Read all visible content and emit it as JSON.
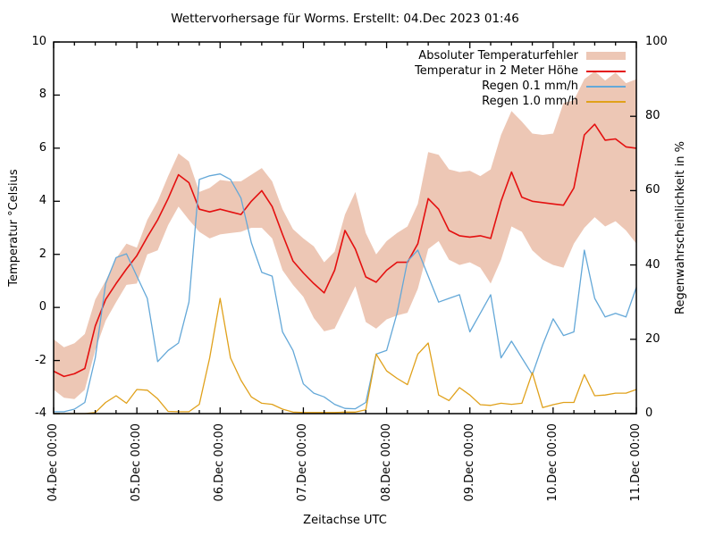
{
  "title": "Wettervorhersage für Worms. Erstellt: 04.Dec 2023 01:46",
  "axes": {
    "x": {
      "label": "Zeitachse UTC",
      "tick_labels": [
        "04.Dec 00:00",
        "05.Dec 00:00",
        "06.Dec 00:00",
        "07.Dec 00:00",
        "08.Dec 00:00",
        "09.Dec 00:00",
        "10.Dec 00:00",
        "11.Dec 00:00"
      ],
      "minor_ticks_per_day": 4
    },
    "y_left": {
      "label": "Temperatur °Celsius",
      "min": -4,
      "max": 10,
      "ticks": [
        -4,
        -2,
        0,
        2,
        4,
        6,
        8,
        10
      ]
    },
    "y_right": {
      "label": "Regenwahrscheinlichkeit in %",
      "min": 0,
      "max": 100,
      "ticks": [
        0,
        20,
        40,
        60,
        80,
        100
      ]
    }
  },
  "legend": [
    {
      "label": "Absoluter Temperaturfehler",
      "type": "band",
      "color": "#edc7b5"
    },
    {
      "label": "Temperatur in 2 Meter Höhe",
      "type": "line",
      "color": "#e41010"
    },
    {
      "label": "Regen 0.1 mm/h",
      "type": "line",
      "color": "#64a8d8"
    },
    {
      "label": "Regen 1.0 mm/h",
      "type": "line",
      "color": "#e0a11b"
    }
  ],
  "colors": {
    "band": "#edc7b5",
    "temperature": "#e41010",
    "rain_01": "#64a8d8",
    "rain_10": "#e0a11b",
    "axis": "#000000",
    "background": "#ffffff"
  },
  "chart_data": {
    "type": "line",
    "title": "Wettervorhersage für Worms. Erstellt: 04.Dec 2023 01:46",
    "xlabel": "Zeitachse UTC",
    "ylabel_left": "Temperatur °Celsius",
    "ylabel_right": "Regenwahrscheinlichkeit in %",
    "x_start": "04.Dec 00:00",
    "x_end": "11.Dec 00:00",
    "time_step_hours": 3,
    "total_hours": 168,
    "ylim_left": [
      -4,
      10
    ],
    "ylim_right": [
      0,
      100
    ],
    "grid": false,
    "legend_position": "top-right-inside",
    "series": [
      {
        "name": "Absoluter Temperaturfehler",
        "type": "band",
        "axis": "left",
        "unit": "°C",
        "hi": [
          -1.2,
          -1.5,
          -1.35,
          -1.0,
          0.3,
          1.0,
          1.85,
          2.4,
          2.25,
          3.3,
          4.0,
          4.95,
          5.8,
          5.5,
          4.35,
          4.5,
          4.8,
          4.75,
          4.75,
          5.0,
          5.25,
          4.75,
          3.7,
          2.95,
          2.6,
          2.3,
          1.7,
          2.1,
          3.5,
          4.35,
          2.8,
          2.0,
          2.5,
          2.8,
          3.05,
          3.9,
          5.85,
          5.75,
          5.2,
          5.1,
          5.15,
          4.95,
          5.2,
          6.5,
          7.4,
          7.0,
          6.55,
          6.5,
          6.55,
          7.7,
          7.8,
          8.6,
          8.9,
          8.55,
          8.85,
          8.45,
          8.6
        ],
        "lo": [
          -3.1,
          -3.4,
          -3.45,
          -3.1,
          -1.6,
          -0.5,
          0.2,
          0.85,
          0.9,
          2.0,
          2.15,
          3.1,
          3.8,
          3.3,
          2.85,
          2.6,
          2.75,
          2.8,
          2.85,
          3.0,
          3.0,
          2.6,
          1.4,
          0.85,
          0.4,
          -0.4,
          -0.9,
          -0.8,
          0.0,
          0.8,
          -0.55,
          -0.8,
          -0.45,
          -0.3,
          -0.2,
          0.7,
          2.2,
          2.5,
          1.8,
          1.6,
          1.7,
          1.5,
          0.9,
          1.8,
          3.05,
          2.85,
          2.15,
          1.8,
          1.6,
          1.5,
          2.4,
          3.0,
          3.4,
          3.05,
          3.25,
          2.9,
          2.4
        ]
      },
      {
        "name": "Temperatur in 2 Meter Höhe",
        "type": "line",
        "axis": "left",
        "unit": "°C",
        "values": [
          -2.4,
          -2.6,
          -2.5,
          -2.3,
          -0.7,
          0.3,
          0.9,
          1.45,
          1.95,
          2.65,
          3.3,
          4.1,
          5.0,
          4.7,
          3.7,
          3.6,
          3.7,
          3.6,
          3.5,
          4.0,
          4.4,
          3.8,
          2.75,
          1.75,
          1.3,
          0.9,
          0.55,
          1.4,
          2.9,
          2.2,
          1.15,
          0.95,
          1.4,
          1.7,
          1.7,
          2.4,
          4.1,
          3.7,
          2.9,
          2.7,
          2.65,
          2.7,
          2.6,
          4.0,
          5.1,
          4.15,
          4.0,
          3.95,
          3.9,
          3.85,
          4.5,
          6.5,
          6.9,
          6.3,
          6.35,
          6.05,
          6.0
        ]
      },
      {
        "name": "Regen 0.1 mm/h",
        "type": "line",
        "axis": "right",
        "unit": "%",
        "values": [
          0.5,
          0.5,
          1.2,
          3,
          15,
          35,
          42,
          43,
          37,
          31,
          14,
          17,
          19,
          30,
          63,
          64,
          64.5,
          63,
          58,
          46,
          38,
          37,
          22,
          17,
          8,
          5.5,
          4.5,
          2.5,
          1.4,
          1.3,
          3,
          16,
          17,
          27,
          41,
          44,
          37,
          30,
          31,
          32,
          22,
          27,
          32,
          15,
          19.5,
          15,
          10.5,
          18.5,
          25.5,
          21,
          22,
          44,
          31,
          26,
          27,
          26,
          34
        ]
      },
      {
        "name": "Regen 1.0 mm/h",
        "type": "line",
        "axis": "right",
        "unit": "%",
        "values": [
          0,
          0,
          0,
          0,
          0.3,
          3,
          4.8,
          2.8,
          6.5,
          6.3,
          4,
          0.6,
          0.5,
          0.5,
          2.5,
          15,
          31,
          15,
          9,
          4.5,
          2.8,
          2.5,
          1.2,
          0.4,
          0.3,
          0.3,
          0.3,
          0.3,
          0.4,
          0.4,
          1,
          16,
          11.5,
          9.5,
          7.8,
          16,
          19,
          5,
          3.5,
          7,
          5,
          2.4,
          2.2,
          2.8,
          2.5,
          2.8,
          11,
          1.6,
          2.4,
          3,
          3,
          10.5,
          4.8,
          5,
          5.5,
          5.5,
          6.5
        ]
      }
    ]
  }
}
